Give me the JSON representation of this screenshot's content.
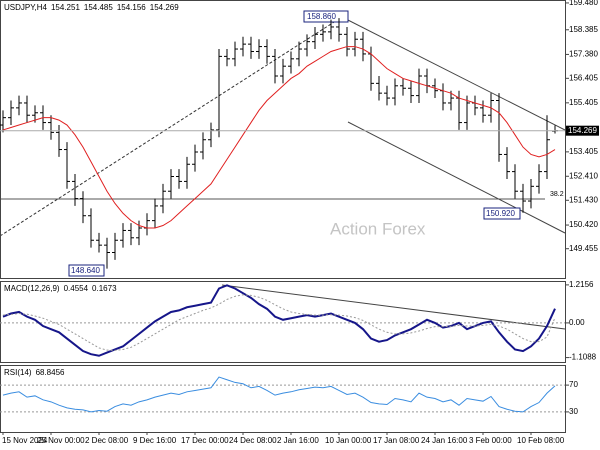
{
  "chart_data": [
    {
      "type": "candlestick",
      "title": "USDJPY,H4",
      "watermark": "Action Forex",
      "categories": [
        "15 Nov 2024",
        null,
        null,
        null,
        null,
        null,
        "25 Nov 00:00",
        null,
        null,
        null,
        null,
        null,
        "2 Dec 08:00",
        null,
        null,
        null,
        null,
        null,
        "9 Dec 16:00",
        null,
        null,
        null,
        null,
        null,
        "17 Dec 00:00",
        null,
        null,
        null,
        null,
        null,
        "24 Dec 08:00",
        null,
        null,
        null,
        null,
        null,
        "2 Jan 16:00",
        null,
        null,
        null,
        null,
        null,
        "10 Jan 00:00",
        null,
        null,
        null,
        null,
        null,
        "17 Jan 08:00",
        null,
        null,
        null,
        null,
        null,
        "24 Jan 16:00",
        null,
        null,
        null,
        null,
        null,
        "3 Feb 00:00",
        null,
        null,
        null,
        null,
        null,
        "10 Feb 08:00",
        null,
        null,
        null
      ],
      "open": [
        154.5,
        154.8,
        155.2,
        155.4,
        154.9,
        155.0,
        154.6,
        154.2,
        153.5,
        152.2,
        151.5,
        150.8,
        149.8,
        149.6,
        149.3,
        149.8,
        150.2,
        149.9,
        150.3,
        150.6,
        151.2,
        151.8,
        152.4,
        152.2,
        152.9,
        153.4,
        153.9,
        154.3,
        157.3,
        157.2,
        157.6,
        157.8,
        157.5,
        157.7,
        157.3,
        156.5,
        156.9,
        157.2,
        157.6,
        157.9,
        158.2,
        158.3,
        158.5,
        158.2,
        157.6,
        158.0,
        157.4,
        156.2,
        155.8,
        155.6,
        156.1,
        156.0,
        155.7,
        156.5,
        156.1,
        155.9,
        155.4,
        155.6,
        154.6,
        155.4,
        155.2,
        154.9,
        155.5,
        153.3,
        152.6,
        151.8,
        151.4,
        152.0,
        152.6,
        154.251
      ],
      "high": [
        155.1,
        155.5,
        155.7,
        155.7,
        155.3,
        155.3,
        154.9,
        154.5,
        153.8,
        152.5,
        151.8,
        151.1,
        150.1,
        149.9,
        150.1,
        150.5,
        150.5,
        150.6,
        150.9,
        151.5,
        152.1,
        152.7,
        152.7,
        153.2,
        153.7,
        154.2,
        154.6,
        157.6,
        157.6,
        157.9,
        158.1,
        158.1,
        158.0,
        158.0,
        157.6,
        157.2,
        157.5,
        157.9,
        158.2,
        158.5,
        158.6,
        158.8,
        158.86,
        158.5,
        158.3,
        158.3,
        157.7,
        156.5,
        156.1,
        156.4,
        156.4,
        156.3,
        156.8,
        156.8,
        156.4,
        156.2,
        155.9,
        155.9,
        155.7,
        155.7,
        155.5,
        155.8,
        155.8,
        153.6,
        152.9,
        152.1,
        152.3,
        152.9,
        154.9,
        154.485
      ],
      "low": [
        154.2,
        154.5,
        154.9,
        154.6,
        154.6,
        154.3,
        153.9,
        153.2,
        151.9,
        151.2,
        150.5,
        149.5,
        149.3,
        148.64,
        149.0,
        149.5,
        149.6,
        149.6,
        150.0,
        150.3,
        150.9,
        151.5,
        151.9,
        151.9,
        152.6,
        153.1,
        153.6,
        154.0,
        156.9,
        156.9,
        157.3,
        157.2,
        157.2,
        157.0,
        156.2,
        156.2,
        156.6,
        156.9,
        157.3,
        157.6,
        157.9,
        158.0,
        157.9,
        157.3,
        157.3,
        157.1,
        155.9,
        155.5,
        155.3,
        155.3,
        155.7,
        155.4,
        155.4,
        155.8,
        155.6,
        155.1,
        155.1,
        154.3,
        154.3,
        154.9,
        154.6,
        154.6,
        153.0,
        152.3,
        151.5,
        150.92,
        151.1,
        151.7,
        152.3,
        154.156
      ],
      "close": [
        154.8,
        155.2,
        155.4,
        154.9,
        155.0,
        154.6,
        154.2,
        153.5,
        152.2,
        151.5,
        150.8,
        149.8,
        149.6,
        149.3,
        149.8,
        150.2,
        149.9,
        150.3,
        150.6,
        151.2,
        151.8,
        152.4,
        152.2,
        152.9,
        153.4,
        153.9,
        154.3,
        157.3,
        157.2,
        157.6,
        157.8,
        157.5,
        157.7,
        157.3,
        156.5,
        156.9,
        157.2,
        157.6,
        157.9,
        158.2,
        158.3,
        158.5,
        158.2,
        157.6,
        158.0,
        157.4,
        156.2,
        155.8,
        155.6,
        156.1,
        156.0,
        155.7,
        156.5,
        156.1,
        155.9,
        155.4,
        155.6,
        154.6,
        155.4,
        155.2,
        154.9,
        155.5,
        153.3,
        152.6,
        151.8,
        151.4,
        152.0,
        152.6,
        153.9,
        154.269
      ],
      "color": "#000000",
      "ma": {
        "color": "#e02020",
        "values": [
          154.3,
          154.4,
          154.5,
          154.6,
          154.7,
          154.8,
          154.8,
          154.7,
          154.5,
          154.1,
          153.6,
          153.0,
          152.4,
          151.8,
          151.3,
          150.9,
          150.6,
          150.4,
          150.3,
          150.3,
          150.4,
          150.6,
          150.9,
          151.2,
          151.5,
          151.8,
          152.1,
          152.6,
          153.1,
          153.6,
          154.1,
          154.6,
          155.1,
          155.5,
          155.8,
          156.1,
          156.4,
          156.6,
          156.9,
          157.1,
          157.3,
          157.5,
          157.6,
          157.7,
          157.7,
          157.6,
          157.4,
          157.1,
          156.8,
          156.6,
          156.4,
          156.3,
          156.2,
          156.1,
          156.0,
          155.9,
          155.8,
          155.6,
          155.5,
          155.4,
          155.3,
          155.2,
          155.0,
          154.6,
          154.1,
          153.6,
          153.3,
          153.2,
          153.3,
          153.5
        ]
      },
      "annotations": [
        "158.860",
        "148.640",
        "150.920",
        "38.2"
      ],
      "ylim": [
        148.26,
        159.6
      ],
      "yticks": [
        {
          "value": 159.48,
          "label": "159.480"
        },
        158.385,
        {
          "value": 157.38,
          "label": "157.380"
        },
        156.405,
        155.405,
        153.405,
        {
          "value": 152.41,
          "label": "152.410"
        },
        {
          "value": 151.43,
          "label": "151.430"
        },
        {
          "value": 150.42,
          "label": "150.420"
        },
        149.455
      ]
    },
    {
      "type": "line",
      "title": "MACD(12,26,9)",
      "series": [
        {
          "color": "#16168a",
          "width": 2,
          "values": [
            0.2,
            0.3,
            0.35,
            0.2,
            0.1,
            -0.1,
            -0.2,
            -0.3,
            -0.5,
            -0.7,
            -0.9,
            -1.0,
            -1.05,
            -0.95,
            -0.85,
            -0.75,
            -0.55,
            -0.35,
            -0.15,
            0.05,
            0.2,
            0.35,
            0.4,
            0.5,
            0.55,
            0.6,
            0.65,
            1.1,
            1.2,
            1.1,
            0.95,
            0.8,
            0.6,
            0.45,
            0.2,
            0.1,
            0.15,
            0.2,
            0.25,
            0.2,
            0.25,
            0.3,
            0.2,
            0.1,
            0.0,
            -0.2,
            -0.5,
            -0.6,
            -0.55,
            -0.4,
            -0.3,
            -0.2,
            -0.05,
            0.1,
            0.0,
            -0.15,
            -0.1,
            0.0,
            -0.2,
            -0.1,
            0.0,
            0.05,
            -0.3,
            -0.6,
            -0.85,
            -0.9,
            -0.75,
            -0.5,
            -0.1,
            0.4554
          ]
        },
        {
          "color": "#999999",
          "width": 1,
          "dashed": true,
          "values": [
            0.25,
            0.27,
            0.3,
            0.28,
            0.22,
            0.15,
            0.05,
            -0.05,
            -0.2,
            -0.35,
            -0.5,
            -0.65,
            -0.8,
            -0.87,
            -0.88,
            -0.85,
            -0.78,
            -0.65,
            -0.5,
            -0.35,
            -0.2,
            -0.05,
            0.1,
            0.2,
            0.3,
            0.4,
            0.48,
            0.6,
            0.75,
            0.85,
            0.9,
            0.88,
            0.82,
            0.72,
            0.58,
            0.45,
            0.35,
            0.3,
            0.27,
            0.25,
            0.25,
            0.26,
            0.25,
            0.22,
            0.17,
            0.08,
            -0.06,
            -0.2,
            -0.3,
            -0.35,
            -0.35,
            -0.32,
            -0.26,
            -0.18,
            -0.12,
            -0.12,
            -0.11,
            -0.08,
            -0.1,
            -0.1,
            -0.08,
            -0.05,
            -0.1,
            -0.2,
            -0.35,
            -0.5,
            -0.6,
            -0.6,
            -0.45,
            0.1673
          ]
        }
      ],
      "ylim": [
        -1.25,
        1.34
      ],
      "yticks": [
        1.2156,
        {
          "value": 0,
          "label": "0.00"
        },
        -1.1088
      ],
      "grid": false
    },
    {
      "type": "line",
      "title": "RSI(14)",
      "series": [
        {
          "color": "#3a8de0",
          "width": 1,
          "values": [
            55,
            58,
            60,
            52,
            54,
            48,
            45,
            40,
            36,
            34,
            33,
            30,
            32,
            31,
            38,
            42,
            40,
            45,
            48,
            52,
            55,
            58,
            56,
            60,
            62,
            64,
            66,
            82,
            78,
            74,
            72,
            66,
            68,
            62,
            55,
            58,
            60,
            63,
            65,
            67,
            66,
            68,
            62,
            56,
            58,
            52,
            44,
            42,
            41,
            50,
            48,
            45,
            58,
            52,
            50,
            45,
            48,
            40,
            50,
            48,
            46,
            53,
            38,
            34,
            31,
            30,
            38,
            44,
            58,
            68.8456
          ]
        }
      ],
      "ylim": [
        0,
        100
      ],
      "yticks": [
        70,
        30
      ],
      "grid": true
    }
  ]
}
